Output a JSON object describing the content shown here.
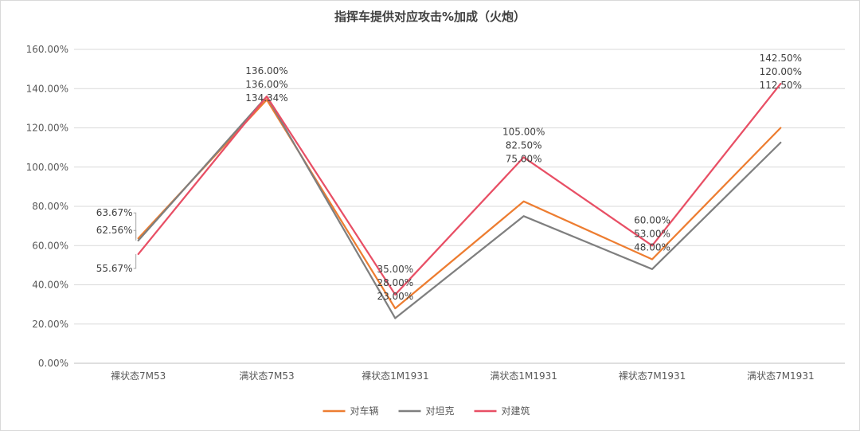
{
  "chart_data": {
    "type": "line",
    "title": "指挥车提供对应攻击%加成（火炮）",
    "xlabel": "",
    "ylabel": "",
    "categories": [
      "裸状态7M53",
      "满状态7M53",
      "裸状态1M1931",
      "满状态1M1931",
      "裸状态7M1931",
      "满状态7M1931"
    ],
    "ylim": [
      0,
      160
    ],
    "yticks": [
      0,
      20,
      40,
      60,
      80,
      100,
      120,
      140,
      160
    ],
    "ytick_labels": [
      "0.00%",
      "20.00%",
      "40.00%",
      "60.00%",
      "80.00%",
      "100.00%",
      "120.00%",
      "140.00%",
      "160.00%"
    ],
    "grid": true,
    "legend": "bottom",
    "series": [
      {
        "name": "对车辆",
        "color": "#ED7D31",
        "values": [
          63.67,
          134.34,
          28.0,
          82.5,
          53.0,
          120.0
        ],
        "labels": [
          "63.67%",
          "134.34%",
          "28.00%",
          "82.50%",
          "53.00%",
          "120.00%"
        ]
      },
      {
        "name": "对坦克",
        "color": "#7F7F7F",
        "values": [
          62.56,
          136.0,
          23.0,
          75.0,
          48.0,
          112.5
        ],
        "labels": [
          "62.56%",
          "136.00%",
          "23.00%",
          "75.00%",
          "48.00%",
          "112.50%"
        ]
      },
      {
        "name": "对建筑",
        "color": "#E84F65",
        "values": [
          55.67,
          136.0,
          35.0,
          105.0,
          60.0,
          142.5
        ],
        "labels": [
          "55.67%",
          "136.00%",
          "35.00%",
          "105.00%",
          "60.00%",
          "142.50%"
        ]
      }
    ]
  }
}
